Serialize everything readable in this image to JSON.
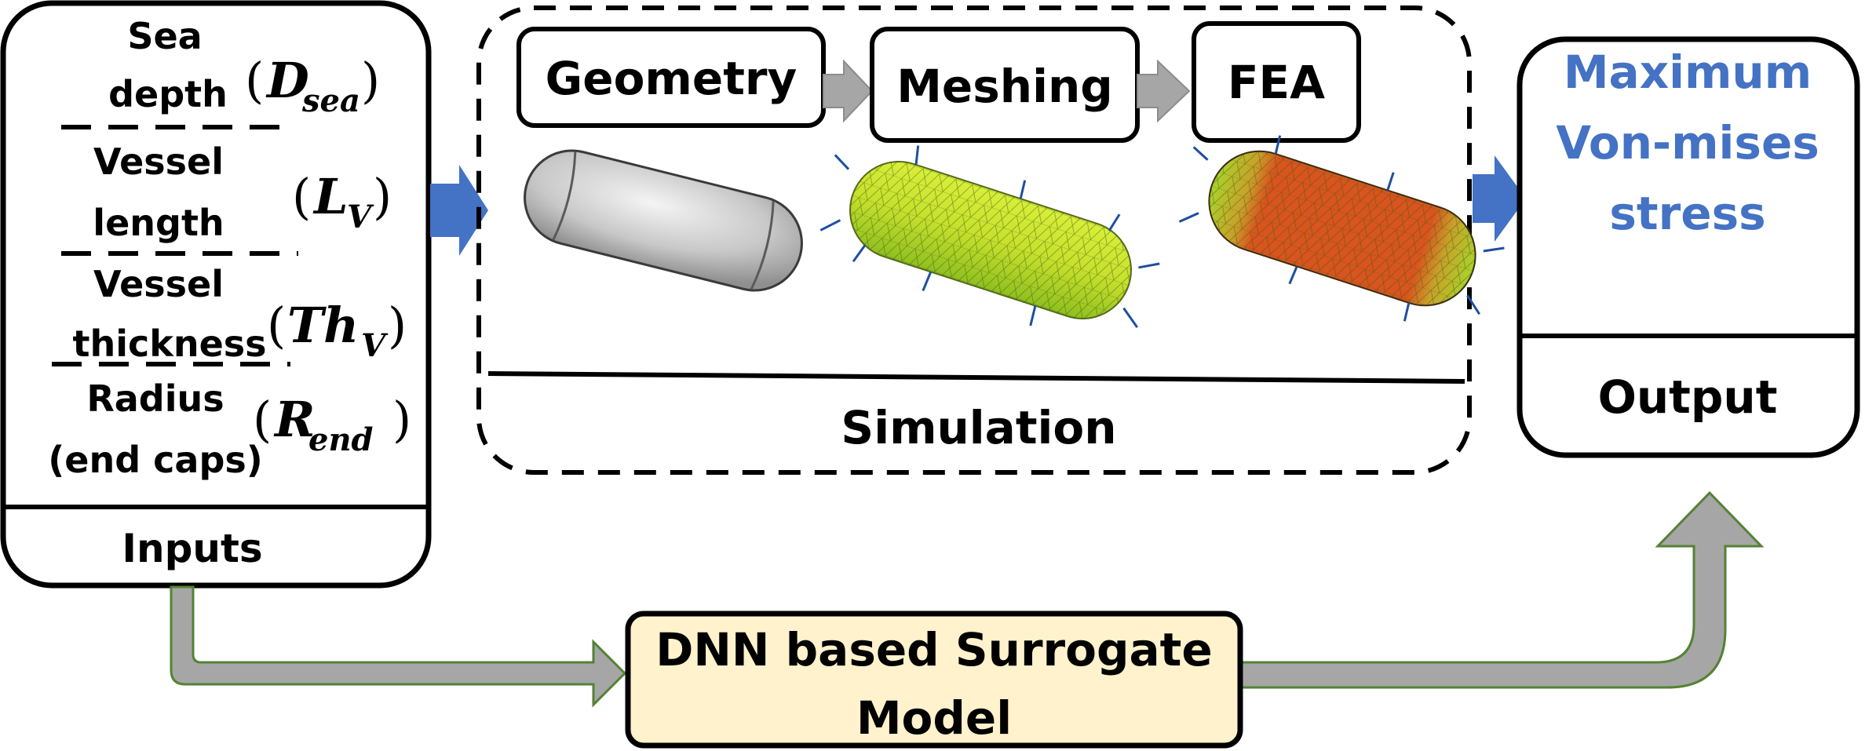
{
  "inputs": {
    "section_label": "Inputs",
    "items": [
      {
        "label_lines": [
          "Sea",
          "depth"
        ],
        "symbol": {
          "base": "D",
          "sub": "sea"
        }
      },
      {
        "label_lines": [
          "Vessel",
          "length"
        ],
        "symbol": {
          "base": "L",
          "sub": "V"
        }
      },
      {
        "label_lines": [
          "Vessel",
          "thickness"
        ],
        "symbol": {
          "base": "Th",
          "sub": "V"
        }
      },
      {
        "label_lines": [
          "Radius",
          "(end caps)"
        ],
        "symbol": {
          "base": "R",
          "sub": "end"
        }
      }
    ]
  },
  "simulation": {
    "section_label": "Simulation",
    "steps": [
      "Geometry",
      "Meshing",
      "FEA"
    ],
    "step_arrow_color": "#A6A6A6"
  },
  "output": {
    "section_label": "Output",
    "result_lines": [
      "Maximum",
      "Von-mises",
      "stress"
    ],
    "result_color": "#4472C4"
  },
  "surrogate": {
    "label_lines": [
      "DNN based Surrogate",
      "Model"
    ],
    "fill_color": "#FFF2CC"
  },
  "colors": {
    "flow_arrow": "#4472C4",
    "bypass_arrow_fill": "#A6A6A6",
    "bypass_arrow_stroke": "#548235",
    "mesh_green": "#9ACD32",
    "stress_red": "#D9541E"
  }
}
